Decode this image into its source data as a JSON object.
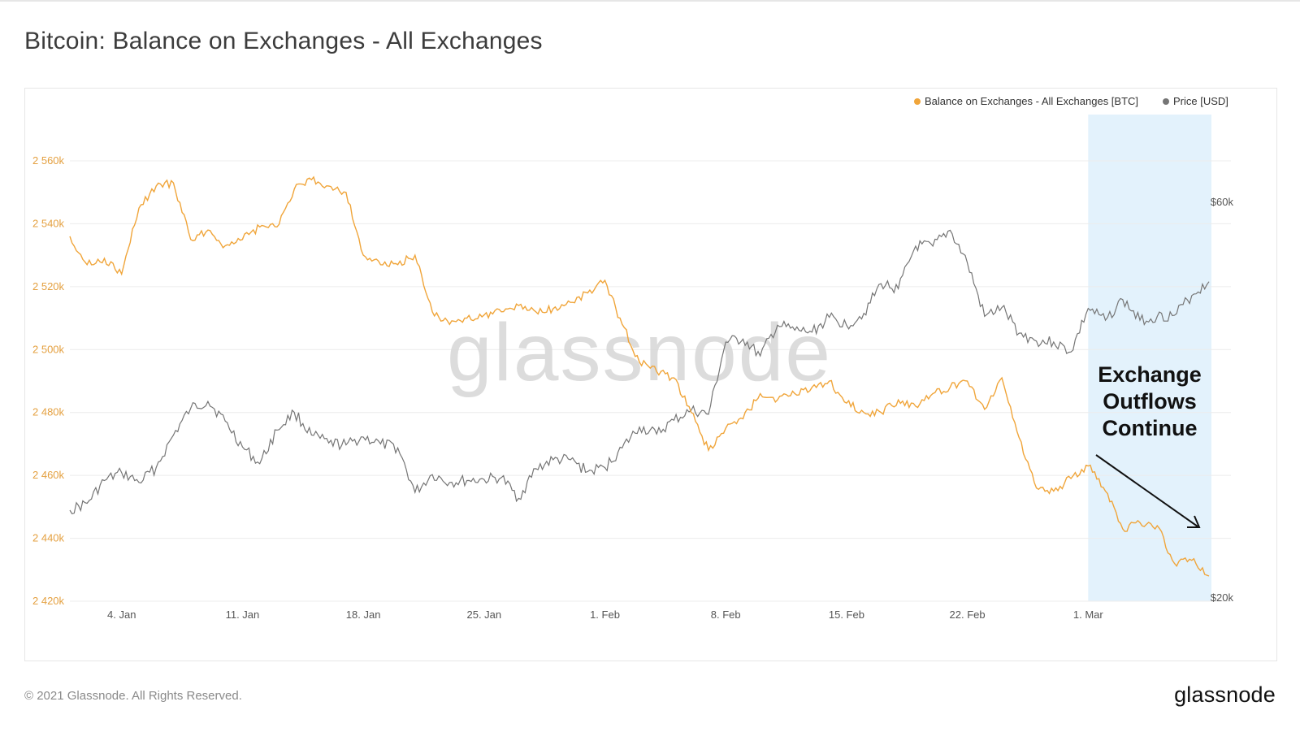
{
  "page": {
    "title": "Bitcoin: Balance on Exchanges - All Exchanges",
    "footer_copyright": "© 2021 Glassnode. All Rights Reserved.",
    "footer_logo": "glassnode",
    "watermark": "glassnode"
  },
  "colors": {
    "balance": "#f0a53a",
    "price": "#757575",
    "highlight": "#e3f2fc",
    "grid": "#ececec",
    "left_tick": "#e4a040",
    "text": "#555555"
  },
  "chart_data": {
    "type": "line",
    "title": "Bitcoin: Balance on Exchanges - All Exchanges",
    "x_ticks": [
      "4. Jan",
      "11. Jan",
      "18. Jan",
      "25. Jan",
      "1. Feb",
      "8. Feb",
      "15. Feb",
      "22. Feb",
      "1. Mar"
    ],
    "x_range": [
      "2021-01-01",
      "2021-03-08"
    ],
    "y_left": {
      "ticks": [
        "2 420k",
        "2 440k",
        "2 460k",
        "2 480k",
        "2 500k",
        "2 520k",
        "2 540k",
        "2 560k"
      ],
      "range": [
        2420000,
        2560000
      ]
    },
    "y_right": {
      "ticks": [
        "$20k",
        "$60k"
      ],
      "range": [
        20000,
        60000
      ]
    },
    "legend": [
      {
        "label": "Balance on Exchanges - All Exchanges [BTC]",
        "color": "#f0a53a"
      },
      {
        "label": "Price [USD]",
        "color": "#757575"
      }
    ],
    "legend_position": "top-right",
    "grid": true,
    "series": [
      {
        "name": "Balance on Exchanges - All Exchanges [BTC]",
        "axis": "left",
        "values": [
          [
            "2021-01-01",
            2536000
          ],
          [
            "2021-01-02",
            2527000
          ],
          [
            "2021-01-03",
            2529000
          ],
          [
            "2021-01-04",
            2524000
          ],
          [
            "2021-01-05",
            2545000
          ],
          [
            "2021-01-06",
            2552000
          ],
          [
            "2021-01-07",
            2553000
          ],
          [
            "2021-01-08",
            2535000
          ],
          [
            "2021-01-09",
            2538000
          ],
          [
            "2021-01-10",
            2533000
          ],
          [
            "2021-01-11",
            2535000
          ],
          [
            "2021-01-12",
            2539000
          ],
          [
            "2021-01-13",
            2539000
          ],
          [
            "2021-01-14",
            2551000
          ],
          [
            "2021-01-15",
            2554000
          ],
          [
            "2021-01-16",
            2552000
          ],
          [
            "2021-01-17",
            2550000
          ],
          [
            "2021-01-18",
            2530000
          ],
          [
            "2021-01-19",
            2527000
          ],
          [
            "2021-01-20",
            2527000
          ],
          [
            "2021-01-21",
            2530000
          ],
          [
            "2021-01-22",
            2512000
          ],
          [
            "2021-01-23",
            2508000
          ],
          [
            "2021-01-24",
            2510000
          ],
          [
            "2021-01-25",
            2511000
          ],
          [
            "2021-01-26",
            2512000
          ],
          [
            "2021-01-27",
            2514000
          ],
          [
            "2021-01-28",
            2512000
          ],
          [
            "2021-01-29",
            2513000
          ],
          [
            "2021-01-30",
            2515000
          ],
          [
            "2021-01-31",
            2518000
          ],
          [
            "2021-02-01",
            2522000
          ],
          [
            "2021-02-02",
            2508000
          ],
          [
            "2021-02-03",
            2496000
          ],
          [
            "2021-02-04",
            2493000
          ],
          [
            "2021-02-05",
            2491000
          ],
          [
            "2021-02-06",
            2480000
          ],
          [
            "2021-02-07",
            2468000
          ],
          [
            "2021-02-08",
            2475000
          ],
          [
            "2021-02-09",
            2478000
          ],
          [
            "2021-02-10",
            2486000
          ],
          [
            "2021-02-11",
            2484000
          ],
          [
            "2021-02-12",
            2486000
          ],
          [
            "2021-02-13",
            2488000
          ],
          [
            "2021-02-14",
            2490000
          ],
          [
            "2021-02-15",
            2483000
          ],
          [
            "2021-02-16",
            2480000
          ],
          [
            "2021-02-17",
            2480000
          ],
          [
            "2021-02-18",
            2484000
          ],
          [
            "2021-02-19",
            2482000
          ],
          [
            "2021-02-20",
            2486000
          ],
          [
            "2021-02-21",
            2488000
          ],
          [
            "2021-02-22",
            2490000
          ],
          [
            "2021-02-23",
            2481000
          ],
          [
            "2021-02-24",
            2491000
          ],
          [
            "2021-02-25",
            2472000
          ],
          [
            "2021-02-26",
            2456000
          ],
          [
            "2021-02-27",
            2455000
          ],
          [
            "2021-02-28",
            2459000
          ],
          [
            "2021-03-01",
            2463000
          ],
          [
            "2021-03-02",
            2455000
          ],
          [
            "2021-03-03",
            2443000
          ],
          [
            "2021-03-04",
            2445000
          ],
          [
            "2021-03-05",
            2444000
          ],
          [
            "2021-03-06",
            2432000
          ],
          [
            "2021-03-07",
            2433000
          ],
          [
            "2021-03-08",
            2428000
          ]
        ]
      },
      {
        "name": "Price [USD]",
        "axis": "right",
        "values": [
          [
            "2021-01-01",
            29200
          ],
          [
            "2021-01-02",
            29900
          ],
          [
            "2021-01-03",
            32200
          ],
          [
            "2021-01-04",
            33000
          ],
          [
            "2021-01-05",
            32000
          ],
          [
            "2021-01-06",
            33500
          ],
          [
            "2021-01-07",
            36800
          ],
          [
            "2021-01-08",
            39500
          ],
          [
            "2021-01-09",
            40200
          ],
          [
            "2021-01-10",
            38200
          ],
          [
            "2021-01-11",
            35600
          ],
          [
            "2021-01-12",
            33900
          ],
          [
            "2021-01-13",
            37300
          ],
          [
            "2021-01-14",
            39100
          ],
          [
            "2021-01-15",
            36800
          ],
          [
            "2021-01-16",
            36000
          ],
          [
            "2021-01-17",
            35800
          ],
          [
            "2021-01-18",
            36600
          ],
          [
            "2021-01-19",
            35900
          ],
          [
            "2021-01-20",
            35500
          ],
          [
            "2021-01-21",
            31000
          ],
          [
            "2021-01-22",
            32800
          ],
          [
            "2021-01-23",
            32000
          ],
          [
            "2021-01-24",
            32200
          ],
          [
            "2021-01-25",
            32300
          ],
          [
            "2021-01-26",
            32500
          ],
          [
            "2021-01-27",
            30400
          ],
          [
            "2021-01-28",
            33400
          ],
          [
            "2021-01-29",
            34300
          ],
          [
            "2021-01-30",
            34300
          ],
          [
            "2021-01-31",
            33100
          ],
          [
            "2021-02-01",
            33500
          ],
          [
            "2021-02-02",
            35500
          ],
          [
            "2021-02-03",
            37600
          ],
          [
            "2021-02-04",
            36900
          ],
          [
            "2021-02-05",
            38300
          ],
          [
            "2021-02-06",
            39300
          ],
          [
            "2021-02-07",
            38900
          ],
          [
            "2021-02-08",
            46200
          ],
          [
            "2021-02-09",
            46500
          ],
          [
            "2021-02-10",
            44800
          ],
          [
            "2021-02-11",
            47900
          ],
          [
            "2021-02-12",
            47400
          ],
          [
            "2021-02-13",
            47200
          ],
          [
            "2021-02-14",
            48700
          ],
          [
            "2021-02-15",
            47900
          ],
          [
            "2021-02-16",
            49100
          ],
          [
            "2021-02-17",
            52100
          ],
          [
            "2021-02-18",
            51600
          ],
          [
            "2021-02-19",
            55900
          ],
          [
            "2021-02-20",
            55900
          ],
          [
            "2021-02-21",
            57500
          ],
          [
            "2021-02-22",
            54200
          ],
          [
            "2021-02-23",
            48800
          ],
          [
            "2021-02-24",
            49700
          ],
          [
            "2021-02-25",
            47100
          ],
          [
            "2021-02-26",
            46300
          ],
          [
            "2021-02-27",
            46200
          ],
          [
            "2021-02-28",
            45200
          ],
          [
            "2021-03-01",
            49600
          ],
          [
            "2021-03-02",
            48400
          ],
          [
            "2021-03-03",
            50500
          ],
          [
            "2021-03-04",
            48400
          ],
          [
            "2021-03-05",
            48800
          ],
          [
            "2021-03-06",
            48900
          ],
          [
            "2021-03-07",
            50900
          ],
          [
            "2021-03-08",
            52300
          ]
        ]
      }
    ],
    "highlight_range": [
      "2021-03-01",
      "2021-03-08"
    ],
    "annotation": {
      "lines": [
        "Exchange",
        "Outflows",
        "Continue"
      ],
      "arrow": "down-right"
    }
  }
}
